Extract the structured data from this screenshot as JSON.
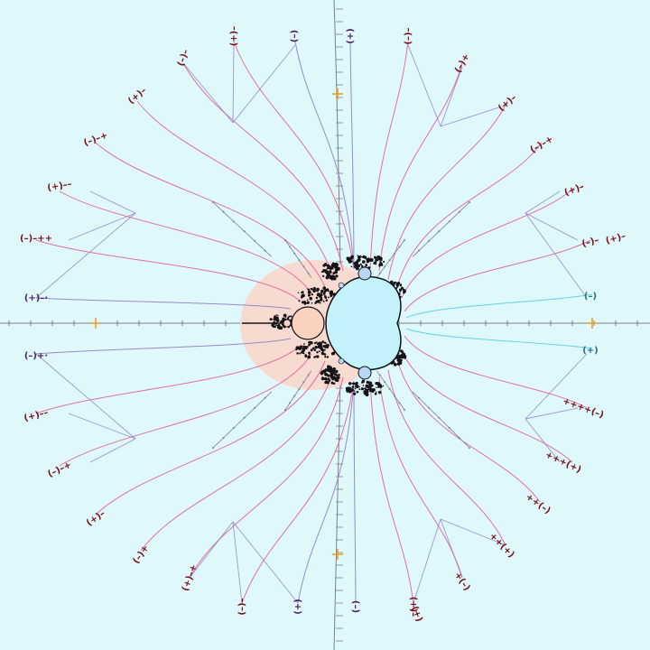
{
  "palette": {
    "background": "#dff8fb",
    "cardioid_fill": "#c4f2fb",
    "secondary_disk_fill": "#fbd2bd",
    "halo_fill": "#fcd6c8",
    "small_bulb_fill": "#b8d8f6",
    "fractal_dust": "#141418",
    "ray_pink": "#e0609a",
    "ray_violet": "#8e7ec4",
    "ray_cyan": "#52cfe0",
    "axis": "#7f7f8a",
    "label_dark_red": "#7a1018",
    "label_purple": "#4b1d6a",
    "label_teal": "#2a6d80",
    "tick_gold": "#e8a030"
  },
  "labels": [
    {
      "id": "top-1",
      "text": "(+)–",
      "color": "label_dark_red"
    },
    {
      "id": "top-2",
      "text": "(–)",
      "color": "label_purple"
    },
    {
      "id": "top-3",
      "text": "(+)",
      "color": "label_purple"
    },
    {
      "id": "top-4",
      "text": "(–)–",
      "color": "label_dark_red"
    },
    {
      "id": "top-left-1",
      "text": "(–)–",
      "color": "label_dark_red"
    },
    {
      "id": "top-left-2",
      "text": "(+)–",
      "color": "label_dark_red"
    },
    {
      "id": "left-1",
      "text": "(–)–+",
      "color": "label_dark_red"
    },
    {
      "id": "left-2",
      "text": "(+)––",
      "color": "label_dark_red"
    },
    {
      "id": "left-3",
      "text": "(–)–++",
      "color": "label_dark_red"
    },
    {
      "id": "left-4",
      "text": "(+)–·",
      "color": "label_purple"
    },
    {
      "id": "left-5",
      "text": "(–)+·",
      "color": "label_purple"
    },
    {
      "id": "left-6",
      "text": "(+)––",
      "color": "label_dark_red"
    },
    {
      "id": "left-7",
      "text": "(–)–+",
      "color": "label_dark_red"
    },
    {
      "id": "left-8",
      "text": "(+)–",
      "color": "label_dark_red"
    },
    {
      "id": "left-9",
      "text": "(–)+",
      "color": "label_dark_red"
    },
    {
      "id": "bottom-left-1",
      "text": "(+)–+",
      "color": "label_dark_red"
    },
    {
      "id": "bottom-1",
      "text": "(–)–",
      "color": "label_dark_red"
    },
    {
      "id": "bottom-2",
      "text": "(+)",
      "color": "label_purple"
    },
    {
      "id": "bottom-3",
      "text": "(–)",
      "color": "label_purple"
    },
    {
      "id": "bottom-4",
      "text": "(+)–",
      "color": "label_dark_red"
    },
    {
      "id": "right-1",
      "text": "(–)+",
      "color": "label_dark_red"
    },
    {
      "id": "right-2",
      "text": "(+)–",
      "color": "label_dark_red"
    },
    {
      "id": "right-3",
      "text": "(–)–+",
      "color": "label_dark_red"
    },
    {
      "id": "right-4",
      "text": "(+)–",
      "color": "label_dark_red"
    },
    {
      "id": "right-5",
      "text": "(–)–",
      "color": "label_dark_red"
    },
    {
      "id": "right-6",
      "text": "(+)–",
      "color": "label_dark_red"
    },
    {
      "id": "right-7",
      "text": "(–)",
      "color": "label_teal"
    },
    {
      "id": "right-8",
      "text": "(+)",
      "color": "label_teal"
    },
    {
      "id": "right-9",
      "text": "++++(–)",
      "color": "label_dark_red"
    },
    {
      "id": "right-10",
      "text": "+++(+)",
      "color": "label_dark_red"
    },
    {
      "id": "right-11",
      "text": "++(–)",
      "color": "label_dark_red"
    },
    {
      "id": "right-12",
      "text": "++(+)",
      "color": "label_dark_red"
    },
    {
      "id": "right-13",
      "text": "+(–)",
      "color": "label_dark_red"
    },
    {
      "id": "right-14",
      "text": "(+)",
      "color": "label_dark_red"
    }
  ]
}
